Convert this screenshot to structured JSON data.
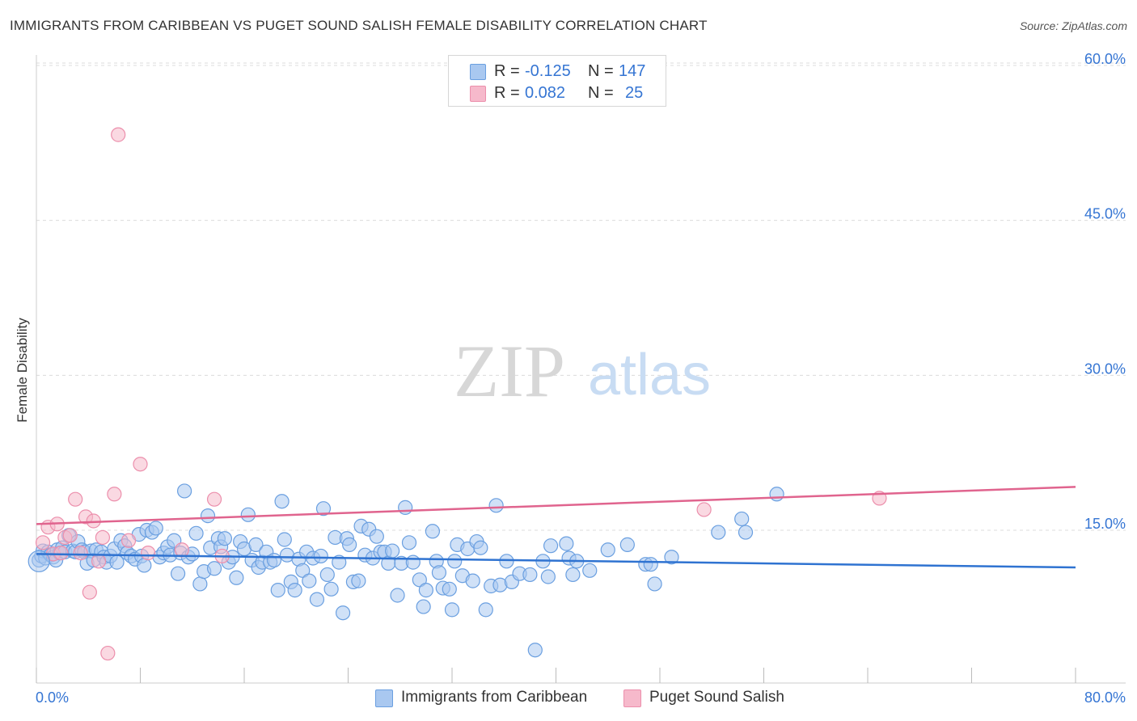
{
  "header": {
    "title": "IMMIGRANTS FROM CARIBBEAN VS PUGET SOUND SALISH FEMALE DISABILITY CORRELATION CHART",
    "source": "Source: ZipAtlas.com"
  },
  "watermark": {
    "zip": "ZIP",
    "atlas": "atlas"
  },
  "legend": {
    "rows": [
      {
        "r_label": "R =",
        "r_value": "-0.125",
        "n_label": "N =",
        "n_value": "147"
      },
      {
        "r_label": "R =",
        "r_value": "0.082",
        "n_label": "N =",
        "n_value": "25"
      }
    ]
  },
  "bottom_legend": {
    "series1": "Immigrants from Caribbean",
    "series2": "Puget Sound Salish"
  },
  "colors": {
    "blue_fill": "#a9c8f0",
    "blue_stroke": "#6a9fe0",
    "blue_line": "#2f73d1",
    "pink_fill": "#f6b9cb",
    "pink_stroke": "#ec8fac",
    "pink_line": "#e0648e",
    "tick_label": "#3575d3",
    "grid": "#dcdcdc"
  },
  "chart_data": {
    "type": "scatter",
    "title": "IMMIGRANTS FROM CARIBBEAN VS PUGET SOUND SALISH FEMALE DISABILITY CORRELATION CHART",
    "xlabel": "",
    "ylabel": "Female Disability",
    "xlim": [
      0,
      80
    ],
    "ylim": [
      0,
      62
    ],
    "x_ticks": [
      "0.0%",
      "80.0%"
    ],
    "y_ticks": [
      {
        "value": 15,
        "label": "15.0%"
      },
      {
        "value": 30,
        "label": "30.0%"
      },
      {
        "value": 45,
        "label": "45.0%"
      },
      {
        "value": 60,
        "label": "60.0%"
      }
    ],
    "grid": true,
    "legend_position": "top-center",
    "series": [
      {
        "name": "Immigrants from Caribbean",
        "R": -0.125,
        "N": 147,
        "trend": {
          "x": [
            0,
            80
          ],
          "y": [
            12.7,
            11.4
          ]
        },
        "points": [
          [
            0.2,
            12.1
          ],
          [
            0.4,
            12.5
          ],
          [
            0.5,
            13.0
          ],
          [
            0.7,
            12.3
          ],
          [
            0.9,
            12.9
          ],
          [
            1.1,
            12.6
          ],
          [
            1.3,
            12.4
          ],
          [
            1.5,
            12.1
          ],
          [
            1.6,
            13.1
          ],
          [
            1.8,
            12.8
          ],
          [
            2.0,
            13.3
          ],
          [
            2.2,
            12.9
          ],
          [
            2.5,
            14.5
          ],
          [
            2.8,
            13.0
          ],
          [
            3.0,
            12.9
          ],
          [
            3.2,
            13.9
          ],
          [
            3.5,
            13.1
          ],
          [
            3.7,
            12.9
          ],
          [
            3.9,
            11.8
          ],
          [
            4.2,
            13.0
          ],
          [
            4.4,
            12.1
          ],
          [
            4.6,
            13.1
          ],
          [
            5.0,
            12.9
          ],
          [
            5.2,
            12.4
          ],
          [
            5.4,
            11.9
          ],
          [
            5.7,
            12.5
          ],
          [
            6.0,
            13.2
          ],
          [
            6.2,
            11.9
          ],
          [
            6.5,
            14.0
          ],
          [
            6.8,
            13.5
          ],
          [
            7.0,
            12.8
          ],
          [
            7.3,
            12.5
          ],
          [
            7.6,
            12.2
          ],
          [
            7.9,
            14.6
          ],
          [
            8.1,
            12.5
          ],
          [
            8.3,
            11.6
          ],
          [
            8.5,
            15.0
          ],
          [
            8.9,
            14.8
          ],
          [
            9.2,
            15.2
          ],
          [
            9.5,
            12.4
          ],
          [
            9.8,
            12.8
          ],
          [
            10.1,
            13.4
          ],
          [
            10.3,
            12.6
          ],
          [
            10.6,
            14.0
          ],
          [
            10.9,
            10.8
          ],
          [
            11.1,
            12.8
          ],
          [
            11.4,
            18.8
          ],
          [
            11.7,
            12.4
          ],
          [
            12.0,
            12.7
          ],
          [
            12.3,
            14.7
          ],
          [
            12.6,
            9.8
          ],
          [
            12.9,
            11.0
          ],
          [
            13.2,
            16.4
          ],
          [
            13.4,
            13.3
          ],
          [
            13.7,
            11.3
          ],
          [
            14.0,
            14.2
          ],
          [
            14.2,
            13.4
          ],
          [
            14.5,
            14.2
          ],
          [
            14.8,
            11.9
          ],
          [
            15.1,
            12.4
          ],
          [
            15.4,
            10.4
          ],
          [
            15.7,
            13.9
          ],
          [
            16.0,
            13.2
          ],
          [
            16.3,
            16.5
          ],
          [
            16.6,
            12.1
          ],
          [
            16.9,
            13.6
          ],
          [
            17.1,
            11.4
          ],
          [
            17.4,
            11.9
          ],
          [
            17.7,
            12.9
          ],
          [
            18.0,
            11.9
          ],
          [
            18.3,
            12.1
          ],
          [
            18.6,
            9.2
          ],
          [
            18.9,
            17.8
          ],
          [
            19.1,
            14.1
          ],
          [
            19.3,
            12.6
          ],
          [
            19.6,
            10.0
          ],
          [
            19.9,
            9.2
          ],
          [
            20.2,
            12.2
          ],
          [
            20.5,
            11.1
          ],
          [
            20.8,
            12.9
          ],
          [
            21.0,
            10.1
          ],
          [
            21.3,
            12.3
          ],
          [
            21.6,
            8.3
          ],
          [
            21.9,
            12.5
          ],
          [
            22.1,
            17.1
          ],
          [
            22.4,
            10.7
          ],
          [
            22.7,
            9.3
          ],
          [
            23.0,
            14.3
          ],
          [
            23.3,
            11.9
          ],
          [
            23.6,
            7.0
          ],
          [
            23.9,
            14.2
          ],
          [
            24.1,
            13.6
          ],
          [
            24.4,
            10.0
          ],
          [
            24.8,
            10.1
          ],
          [
            25.0,
            15.4
          ],
          [
            25.3,
            12.6
          ],
          [
            25.6,
            15.1
          ],
          [
            25.9,
            12.3
          ],
          [
            26.2,
            14.4
          ],
          [
            26.5,
            12.9
          ],
          [
            26.8,
            12.9
          ],
          [
            27.1,
            11.8
          ],
          [
            27.4,
            13.0
          ],
          [
            27.8,
            8.7
          ],
          [
            28.1,
            11.8
          ],
          [
            28.4,
            17.2
          ],
          [
            28.7,
            13.8
          ],
          [
            29.0,
            11.9
          ],
          [
            29.5,
            10.2
          ],
          [
            29.8,
            7.6
          ],
          [
            30.0,
            9.2
          ],
          [
            30.5,
            14.9
          ],
          [
            30.8,
            12.0
          ],
          [
            31.0,
            10.9
          ],
          [
            31.3,
            9.4
          ],
          [
            31.8,
            9.3
          ],
          [
            32.0,
            7.3
          ],
          [
            32.2,
            12.0
          ],
          [
            32.4,
            13.6
          ],
          [
            32.8,
            10.6
          ],
          [
            33.2,
            13.2
          ],
          [
            33.6,
            10.1
          ],
          [
            33.9,
            13.9
          ],
          [
            34.2,
            13.3
          ],
          [
            34.6,
            7.3
          ],
          [
            35.0,
            9.6
          ],
          [
            35.4,
            17.4
          ],
          [
            35.7,
            9.7
          ],
          [
            36.2,
            12.0
          ],
          [
            36.6,
            10.0
          ],
          [
            37.2,
            10.8
          ],
          [
            38.0,
            10.7
          ],
          [
            38.4,
            3.4
          ],
          [
            39.0,
            12.0
          ],
          [
            39.4,
            10.5
          ],
          [
            39.6,
            13.5
          ],
          [
            40.8,
            13.7
          ],
          [
            41.0,
            12.3
          ],
          [
            41.3,
            10.7
          ],
          [
            41.6,
            12.0
          ],
          [
            42.6,
            11.1
          ],
          [
            44.0,
            13.1
          ],
          [
            45.5,
            13.6
          ],
          [
            46.9,
            11.7
          ],
          [
            47.3,
            11.7
          ],
          [
            47.6,
            9.8
          ],
          [
            48.9,
            12.4
          ],
          [
            52.5,
            14.8
          ],
          [
            54.3,
            16.1
          ],
          [
            54.6,
            14.8
          ],
          [
            57.0,
            18.5
          ]
        ]
      },
      {
        "name": "Puget Sound Salish",
        "R": 0.082,
        "N": 25,
        "trend": {
          "x": [
            0,
            80
          ],
          "y": [
            15.6,
            19.2
          ]
        },
        "points": [
          [
            0.5,
            13.8
          ],
          [
            0.9,
            15.3
          ],
          [
            1.3,
            12.7
          ],
          [
            1.6,
            15.6
          ],
          [
            1.9,
            12.8
          ],
          [
            2.2,
            14.3
          ],
          [
            2.6,
            14.5
          ],
          [
            3.0,
            18.0
          ],
          [
            3.4,
            12.8
          ],
          [
            3.8,
            16.3
          ],
          [
            4.1,
            9.0
          ],
          [
            4.4,
            15.9
          ],
          [
            4.8,
            12.0
          ],
          [
            5.1,
            14.3
          ],
          [
            5.5,
            3.1
          ],
          [
            6.0,
            18.5
          ],
          [
            6.3,
            53.3
          ],
          [
            7.1,
            14.0
          ],
          [
            8.0,
            21.4
          ],
          [
            8.6,
            12.8
          ],
          [
            11.2,
            13.1
          ],
          [
            13.7,
            18.0
          ],
          [
            14.3,
            12.5
          ],
          [
            51.4,
            17.0
          ],
          [
            64.9,
            18.1
          ]
        ]
      }
    ]
  }
}
